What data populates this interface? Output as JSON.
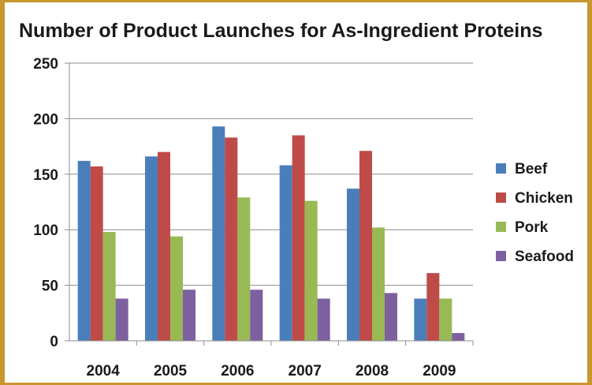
{
  "chart_data": {
    "type": "bar",
    "title": "Number of Product Launches for As-Ingredient Proteins",
    "xlabel": "",
    "ylabel": "",
    "categories": [
      "2004",
      "2005",
      "2006",
      "2007",
      "2008",
      "2009"
    ],
    "series": [
      {
        "name": "Beef",
        "color": "#4a7ebb",
        "values": [
          162,
          166,
          193,
          158,
          137,
          38
        ]
      },
      {
        "name": "Chicken",
        "color": "#be4b48",
        "values": [
          157,
          170,
          183,
          185,
          171,
          61
        ]
      },
      {
        "name": "Pork",
        "color": "#98b954",
        "values": [
          98,
          94,
          129,
          126,
          102,
          38
        ]
      },
      {
        "name": "Seafood",
        "color": "#7d60a0",
        "values": [
          38,
          46,
          46,
          38,
          43,
          7
        ]
      }
    ],
    "ylim": [
      0,
      250
    ],
    "yticks": [
      0,
      50,
      100,
      150,
      200,
      250
    ],
    "grid": true,
    "legend_position": "right"
  }
}
